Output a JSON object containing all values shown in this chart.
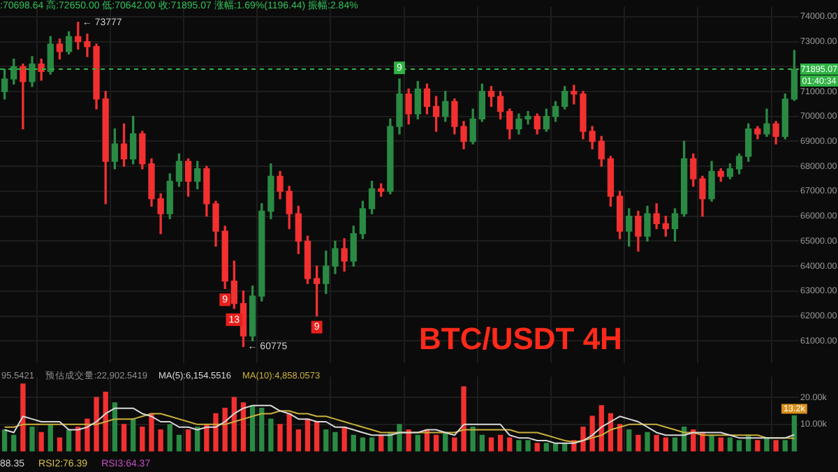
{
  "chart_data": [
    {
      "type": "candlestick",
      "title": "BTC/USDT 4H",
      "subtitle": ":70698.64 高:72650.00 低:70642.00 收:71895.07 涨幅:1.69%(1196.44) 振幅:2.84%",
      "categories": [
        null,
        null,
        null,
        null,
        null,
        null,
        null,
        null,
        null,
        null,
        null,
        null,
        null,
        null,
        null,
        null,
        null,
        null,
        null,
        null,
        null,
        null,
        null,
        null,
        null,
        null,
        null,
        null,
        null,
        null,
        null,
        null,
        null,
        null,
        null,
        null,
        null,
        null,
        null,
        null,
        null,
        null,
        null,
        null,
        null,
        null,
        null,
        null,
        null,
        null,
        null,
        null,
        null,
        null,
        null,
        null,
        null,
        null,
        null,
        null,
        null,
        null,
        null,
        null,
        null,
        null,
        null,
        null,
        null,
        null,
        null,
        null,
        null,
        null,
        null,
        null,
        null,
        null,
        null,
        null,
        null,
        null,
        null,
        null,
        null,
        null,
        null
      ],
      "ohlc": [
        [
          71000,
          71900,
          70700,
          71500
        ],
        [
          71500,
          72300,
          71300,
          72000
        ],
        [
          72000,
          72100,
          69500,
          71400
        ],
        [
          71400,
          72400,
          71200,
          72100
        ],
        [
          72100,
          72300,
          71450,
          71800
        ],
        [
          71800,
          73200,
          71700,
          72900
        ],
        [
          72900,
          73100,
          72300,
          72600
        ],
        [
          72600,
          73400,
          72500,
          73200
        ],
        [
          73200,
          73777,
          72700,
          73000
        ],
        [
          73000,
          73300,
          72400,
          72800
        ],
        [
          72800,
          72900,
          70300,
          70700
        ],
        [
          70700,
          71000,
          66500,
          68200
        ],
        [
          68200,
          69500,
          67900,
          68900
        ],
        [
          68900,
          69700,
          68000,
          68300
        ],
        [
          68300,
          70000,
          68100,
          69300
        ],
        [
          69300,
          69400,
          67900,
          68100
        ],
        [
          68100,
          68300,
          66400,
          66700
        ],
        [
          66700,
          66900,
          65300,
          66100
        ],
        [
          66100,
          67700,
          65900,
          67400
        ],
        [
          67400,
          68500,
          67200,
          68200
        ],
        [
          68200,
          68300,
          66800,
          67400
        ],
        [
          67400,
          68200,
          67100,
          67900
        ],
        [
          67900,
          68000,
          66000,
          66500
        ],
        [
          66500,
          66600,
          64800,
          65400
        ],
        [
          65400,
          65600,
          63100,
          63400
        ],
        [
          63400,
          64200,
          62300,
          62500
        ],
        [
          62500,
          63000,
          60775,
          61200
        ],
        [
          61200,
          63200,
          61000,
          62800
        ],
        [
          62800,
          66500,
          62600,
          66200
        ],
        [
          66200,
          68100,
          65900,
          67600
        ],
        [
          67600,
          67800,
          66700,
          67000
        ],
        [
          67000,
          67200,
          65500,
          66100
        ],
        [
          66100,
          66400,
          64500,
          65000
        ],
        [
          65000,
          65200,
          63300,
          63500
        ],
        [
          63500,
          64000,
          62000,
          63300
        ],
        [
          63300,
          64600,
          62900,
          64000
        ],
        [
          64000,
          65000,
          63700,
          64700
        ],
        [
          64700,
          65100,
          63800,
          64200
        ],
        [
          64200,
          65600,
          64000,
          65300
        ],
        [
          65300,
          66600,
          65100,
          66300
        ],
        [
          66300,
          67400,
          66100,
          67100
        ],
        [
          67100,
          67300,
          66800,
          67000
        ],
        [
          67000,
          69900,
          66900,
          69600
        ],
        [
          69600,
          71500,
          69300,
          70900
        ],
        [
          70900,
          71100,
          69700,
          70100
        ],
        [
          70100,
          71400,
          69900,
          71100
        ],
        [
          71100,
          71300,
          70100,
          70400
        ],
        [
          70400,
          70800,
          69400,
          70000
        ],
        [
          70000,
          71000,
          69800,
          70600
        ],
        [
          70600,
          70700,
          69300,
          69600
        ],
        [
          69600,
          69800,
          68700,
          69000
        ],
        [
          69000,
          70300,
          68900,
          69900
        ],
        [
          69900,
          71300,
          69800,
          71000
        ],
        [
          71000,
          71200,
          70400,
          70800
        ],
        [
          70800,
          71000,
          69900,
          70200
        ],
        [
          70200,
          70300,
          69100,
          69500
        ],
        [
          69500,
          70100,
          69300,
          69900
        ],
        [
          69900,
          70200,
          69700,
          70000
        ],
        [
          70000,
          70100,
          69300,
          69500
        ],
        [
          69500,
          70300,
          69400,
          70000
        ],
        [
          70000,
          70600,
          69800,
          70400
        ],
        [
          70400,
          71200,
          70300,
          71000
        ],
        [
          71000,
          71250,
          70500,
          70900
        ],
        [
          70900,
          71000,
          69100,
          69400
        ],
        [
          69400,
          69600,
          68700,
          69000
        ],
        [
          69000,
          69200,
          68000,
          68300
        ],
        [
          68300,
          68400,
          66400,
          66800
        ],
        [
          66800,
          67000,
          65100,
          65400
        ],
        [
          65400,
          66300,
          64800,
          66000
        ],
        [
          66000,
          66200,
          64600,
          65200
        ],
        [
          65200,
          66400,
          65000,
          66100
        ],
        [
          66100,
          66500,
          65500,
          65700
        ],
        [
          65700,
          66000,
          65200,
          65500
        ],
        [
          65500,
          66300,
          65000,
          66100
        ],
        [
          66100,
          69000,
          66000,
          68300
        ],
        [
          68300,
          68500,
          67200,
          67500
        ],
        [
          67500,
          67600,
          66000,
          66700
        ],
        [
          66700,
          68200,
          66600,
          67800
        ],
        [
          67800,
          67900,
          67400,
          67600
        ],
        [
          67600,
          68100,
          67500,
          67900
        ],
        [
          67900,
          68500,
          67700,
          68400
        ],
        [
          68400,
          69700,
          68200,
          69500
        ],
        [
          69500,
          69600,
          69100,
          69300
        ],
        [
          69300,
          70300,
          69200,
          69700
        ],
        [
          69700,
          69800,
          68900,
          69200
        ],
        [
          69200,
          70900,
          69100,
          70698.64
        ],
        [
          70698.64,
          72650,
          70642,
          71895.07
        ]
      ],
      "colors": [
        "#2a8a44",
        "#2a8a44",
        "#f23030",
        "#2a8a44",
        "#f23030",
        "#2a8a44",
        "#f23030",
        "#2a8a44",
        "#f23030",
        "#f23030",
        "#f23030",
        "#f23030",
        "#2a8a44",
        "#f23030",
        "#2a8a44",
        "#f23030",
        "#f23030",
        "#f23030",
        "#2a8a44",
        "#2a8a44",
        "#f23030",
        "#2a8a44",
        "#f23030",
        "#f23030",
        "#f23030",
        "#f23030",
        "#f23030",
        "#2a8a44",
        "#2a8a44",
        "#2a8a44",
        "#f23030",
        "#f23030",
        "#f23030",
        "#f23030",
        "#f23030",
        "#2a8a44",
        "#2a8a44",
        "#f23030",
        "#2a8a44",
        "#2a8a44",
        "#2a8a44",
        "#f23030",
        "#2a8a44",
        "#2a8a44",
        "#f23030",
        "#2a8a44",
        "#f23030",
        "#f23030",
        "#2a8a44",
        "#f23030",
        "#f23030",
        "#2a8a44",
        "#2a8a44",
        "#f23030",
        "#f23030",
        "#f23030",
        "#2a8a44",
        "#2a8a44",
        "#f23030",
        "#2a8a44",
        "#2a8a44",
        "#2a8a44",
        "#f23030",
        "#f23030",
        "#f23030",
        "#f23030",
        "#f23030",
        "#f23030",
        "#2a8a44",
        "#f23030",
        "#2a8a44",
        "#f23030",
        "#f23030",
        "#2a8a44",
        "#2a8a44",
        "#f23030",
        "#f23030",
        "#2a8a44",
        "#f23030",
        "#2a8a44",
        "#2a8a44",
        "#2a8a44",
        "#f23030",
        "#2a8a44",
        "#f23030",
        "#2a8a44",
        "#2a8a44"
      ],
      "ylim": [
        60100,
        74400
      ],
      "yticks": [
        {
          "value": 61000,
          "label": "61000.00"
        },
        {
          "value": 62000,
          "label": "62000.00"
        },
        {
          "value": 63000,
          "label": "63000.00"
        },
        {
          "value": 64000,
          "label": "64000.00"
        },
        {
          "value": 65000,
          "label": "65000.00"
        },
        {
          "value": 66000,
          "label": "66000.00"
        },
        {
          "value": 67000,
          "label": "67000.00"
        },
        {
          "value": 68000,
          "label": "68000.00"
        },
        {
          "value": 69000,
          "label": "69000.00"
        },
        {
          "value": 70000,
          "label": "70000.00"
        },
        {
          "value": 71000,
          "label": "71000.00"
        },
        {
          "value": 72000,
          "label": null
        },
        {
          "value": 73000,
          "label": "73000.00"
        },
        {
          "value": 74000,
          "label": "74000.00"
        }
      ],
      "grid": true,
      "ref_lines": [
        {
          "axis": "y",
          "value": 71895.07,
          "label": "71895.07",
          "color": "#2fb344",
          "line_style": "dashed"
        }
      ],
      "annotations": [
        "← 73777",
        "← 60775",
        {
          "text": "9",
          "y": 63100
        },
        {
          "text": "13",
          "y": 62300
        },
        {
          "text": "9",
          "y": 62000
        },
        {
          "text": "9",
          "y": 71500
        },
        "01:40:34"
      ]
    },
    {
      "type": "bar",
      "categories": [
        null,
        null,
        null,
        null,
        null,
        null,
        null,
        null,
        null,
        null,
        null,
        null,
        null,
        null,
        null,
        null,
        null,
        null,
        null,
        null,
        null,
        null,
        null,
        null,
        null,
        null,
        null,
        null,
        null,
        null,
        null,
        null,
        null,
        null,
        null,
        null,
        null,
        null,
        null,
        null,
        null,
        null,
        null,
        null,
        null,
        null,
        null,
        null,
        null,
        null,
        null,
        null,
        null,
        null,
        null,
        null,
        null,
        null,
        null,
        null,
        null,
        null,
        null,
        null,
        null,
        null,
        null,
        null,
        null,
        null,
        null,
        null,
        null,
        null,
        null,
        null,
        null,
        null,
        null,
        null,
        null,
        null,
        null,
        null,
        null,
        null,
        null
      ],
      "series": [
        {
          "type": "bar",
          "colors": [
            "#2a8a44",
            "#2a8a44",
            "#f23030",
            "#2a8a44",
            "#f23030",
            "#2a8a44",
            "#f23030",
            "#2a8a44",
            "#f23030",
            "#f23030",
            "#f23030",
            "#f23030",
            "#2a8a44",
            "#f23030",
            "#2a8a44",
            "#f23030",
            "#f23030",
            "#f23030",
            "#2a8a44",
            "#2a8a44",
            "#f23030",
            "#2a8a44",
            "#f23030",
            "#f23030",
            "#f23030",
            "#f23030",
            "#f23030",
            "#2a8a44",
            "#2a8a44",
            "#2a8a44",
            "#f23030",
            "#f23030",
            "#f23030",
            "#f23030",
            "#f23030",
            "#2a8a44",
            "#2a8a44",
            "#f23030",
            "#2a8a44",
            "#2a8a44",
            "#2a8a44",
            "#f23030",
            "#2a8a44",
            "#2a8a44",
            "#f23030",
            "#2a8a44",
            "#f23030",
            "#f23030",
            "#2a8a44",
            "#f23030",
            "#f23030",
            "#2a8a44",
            "#2a8a44",
            "#f23030",
            "#f23030",
            "#f23030",
            "#2a8a44",
            "#2a8a44",
            "#f23030",
            "#2a8a44",
            "#2a8a44",
            "#2a8a44",
            "#f23030",
            "#f23030",
            "#f23030",
            "#f23030",
            "#f23030",
            "#f23030",
            "#2a8a44",
            "#f23030",
            "#2a8a44",
            "#f23030",
            "#f23030",
            "#2a8a44",
            "#2a8a44",
            "#f23030",
            "#f23030",
            "#2a8a44",
            "#f23030",
            "#2a8a44",
            "#2a8a44",
            "#2a8a44",
            "#f23030",
            "#2a8a44",
            "#f23030",
            "#2a8a44",
            "#2a8a44"
          ],
          "values": [
            8000,
            6000,
            25000,
            9000,
            7000,
            10000,
            5000,
            8000,
            9000,
            12000,
            20000,
            22000,
            18000,
            10000,
            12000,
            9000,
            14000,
            8000,
            10000,
            6000,
            8000,
            9000,
            10000,
            14000,
            16000,
            20000,
            18000,
            17000,
            16000,
            12000,
            10000,
            14000,
            8000,
            12000,
            11000,
            8000,
            7000,
            9000,
            6000,
            5000,
            5000,
            6000,
            7000,
            10000,
            8000,
            6000,
            8000,
            6000,
            7000,
            5000,
            24000,
            9000,
            6000,
            5000,
            6000,
            5000,
            4000,
            4000,
            3000,
            3000,
            3000,
            3000,
            4000,
            9000,
            13000,
            17000,
            14000,
            10000,
            8000,
            6000,
            7000,
            6000,
            5000,
            5000,
            9000,
            8000,
            7000,
            6000,
            5000,
            5000,
            4000,
            6000,
            4000,
            5000,
            4000,
            4000,
            13200
          ],
          "value_labels": [
            null,
            null,
            null,
            null,
            null,
            null,
            null,
            null,
            null,
            null,
            null,
            null,
            null,
            null,
            null,
            null,
            null,
            null,
            null,
            null,
            null,
            null,
            null,
            null,
            null,
            null,
            null,
            null,
            null,
            null,
            null,
            null,
            null,
            null,
            null,
            null,
            null,
            null,
            null,
            null,
            null,
            null,
            null,
            null,
            null,
            null,
            null,
            null,
            null,
            null,
            null,
            null,
            null,
            null,
            null,
            null,
            null,
            null,
            null,
            null,
            null,
            null,
            null,
            null,
            null,
            null,
            null,
            null,
            null,
            null,
            null,
            null,
            null,
            null,
            null,
            null,
            null,
            null,
            null,
            null,
            null,
            null,
            null,
            null,
            null,
            null,
            "13.2k"
          ]
        },
        {
          "type": "line",
          "name": "MA(5):6,154.5516",
          "color": "#d8d8d8",
          "values": [
            8000,
            7000,
            13000,
            12000,
            11000,
            11000,
            11000,
            8000,
            8000,
            9000,
            11000,
            14000,
            16000,
            16000,
            16000,
            14000,
            13000,
            11000,
            11000,
            9000,
            9000,
            8000,
            9000,
            9000,
            11000,
            14000,
            16000,
            17000,
            17000,
            17000,
            15000,
            14000,
            12000,
            12000,
            11000,
            11000,
            9000,
            9000,
            8000,
            7000,
            6000,
            6000,
            6000,
            7000,
            7000,
            7000,
            8000,
            8000,
            7000,
            6000,
            10000,
            10000,
            10000,
            10000,
            10000,
            6000,
            5000,
            5000,
            4000,
            4000,
            3000,
            3000,
            3000,
            4000,
            6000,
            9000,
            11000,
            13000,
            12000,
            11000,
            9000,
            7000,
            6000,
            6000,
            6000,
            7000,
            7000,
            7000,
            7000,
            6000,
            5000,
            5000,
            5000,
            5000,
            5000,
            5000,
            6154.5516
          ]
        },
        {
          "type": "line",
          "name": "MA(10):4,858.0573",
          "color": "#c9b03a",
          "values": [
            9000,
            9000,
            10000,
            10000,
            10000,
            10000,
            10000,
            10000,
            10000,
            10000,
            10000,
            11000,
            12000,
            12000,
            12000,
            13000,
            14000,
            14000,
            13000,
            12000,
            11000,
            10000,
            10000,
            10000,
            10000,
            11000,
            12000,
            13000,
            14000,
            14000,
            15000,
            15000,
            14000,
            14000,
            13000,
            13000,
            12000,
            11000,
            10000,
            9000,
            8000,
            7000,
            7000,
            7000,
            7000,
            7000,
            7000,
            7000,
            7000,
            7000,
            8000,
            8000,
            8000,
            8000,
            8000,
            8000,
            7000,
            7000,
            7000,
            6000,
            5000,
            4000,
            3500,
            4000,
            5000,
            6000,
            8000,
            9000,
            10000,
            10000,
            10000,
            10000,
            9000,
            8000,
            7000,
            7000,
            6000,
            6000,
            6000,
            6000,
            6000,
            6000,
            6000,
            5000,
            5000,
            5000,
            4858.0573
          ]
        }
      ],
      "ylim": [
        0,
        27700
      ],
      "yticks": [
        {
          "value": 10000,
          "label": "10.00k"
        },
        {
          "value": 20000,
          "label": "20.00k"
        }
      ],
      "grid": true,
      "legend": "top left",
      "annotations": [
        "95.5421",
        "预估成交量:22,902.5419"
      ]
    },
    {
      "type": "other",
      "annotations": [
        "88.35",
        "RSI2:76.39",
        "RSI3:64.37"
      ]
    }
  ]
}
